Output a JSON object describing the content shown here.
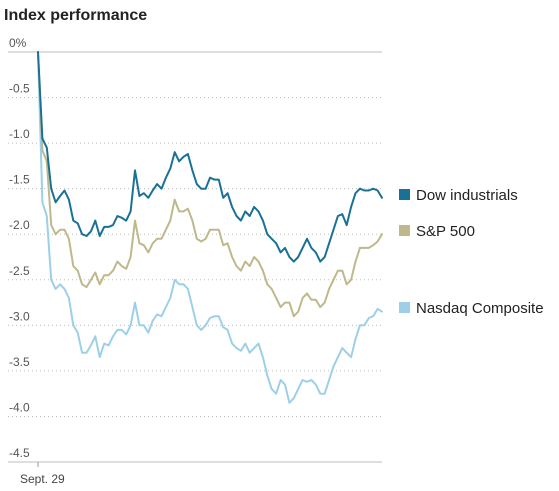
{
  "chart_data": {
    "type": "line",
    "title": "Index performance",
    "xlabel": "",
    "ylabel": "",
    "ylim": [
      -4.5,
      0
    ],
    "yticks": [
      0,
      -0.5,
      -1.0,
      -1.5,
      -2.0,
      -2.5,
      -3.0,
      -3.5,
      -4.0,
      -4.5
    ],
    "ytick_labels": [
      "0%",
      "-0.5",
      "-1.0",
      "-1.5",
      "-2.0",
      "-2.5",
      "-3.0",
      "-3.5",
      "-4.0",
      "-4.5"
    ],
    "xtick_labels": [
      "Sept. 29"
    ],
    "grid": true,
    "legend": "right",
    "series": [
      {
        "name": "Dow industrials",
        "color": "#1a7196",
        "values": [
          0,
          -0.95,
          -1.05,
          -1.5,
          -1.65,
          -1.58,
          -1.52,
          -1.62,
          -1.85,
          -1.88,
          -2.0,
          -2.02,
          -1.97,
          -1.85,
          -2.02,
          -1.92,
          -1.92,
          -1.9,
          -1.8,
          -1.82,
          -1.85,
          -1.75,
          -1.3,
          -1.58,
          -1.55,
          -1.6,
          -1.52,
          -1.45,
          -1.5,
          -1.38,
          -1.28,
          -1.1,
          -1.2,
          -1.15,
          -1.12,
          -1.3,
          -1.45,
          -1.5,
          -1.5,
          -1.38,
          -1.4,
          -1.4,
          -1.6,
          -1.55,
          -1.7,
          -1.8,
          -1.85,
          -1.75,
          -1.8,
          -1.7,
          -1.75,
          -1.85,
          -2.0,
          -2.05,
          -2.1,
          -2.2,
          -2.15,
          -2.25,
          -2.3,
          -2.25,
          -2.15,
          -2.05,
          -2.15,
          -2.2,
          -2.3,
          -2.25,
          -2.1,
          -1.95,
          -1.8,
          -1.78,
          -1.9,
          -1.7,
          -1.55,
          -1.5,
          -1.52,
          -1.52,
          -1.5,
          -1.52,
          -1.6
        ]
      },
      {
        "name": "S&P 500",
        "color": "#bfb88a",
        "values": [
          0,
          -1.08,
          -1.2,
          -1.9,
          -2.0,
          -1.95,
          -1.95,
          -2.05,
          -2.35,
          -2.4,
          -2.55,
          -2.58,
          -2.5,
          -2.42,
          -2.55,
          -2.45,
          -2.45,
          -2.4,
          -2.3,
          -2.35,
          -2.38,
          -2.25,
          -1.85,
          -2.1,
          -2.12,
          -2.2,
          -2.1,
          -2.05,
          -2.05,
          -1.95,
          -1.85,
          -1.62,
          -1.75,
          -1.75,
          -1.72,
          -1.85,
          -2.05,
          -2.08,
          -2.05,
          -1.95,
          -1.95,
          -1.95,
          -2.12,
          -2.1,
          -2.25,
          -2.35,
          -2.4,
          -2.3,
          -2.35,
          -2.25,
          -2.3,
          -2.4,
          -2.55,
          -2.6,
          -2.7,
          -2.8,
          -2.75,
          -2.75,
          -2.9,
          -2.85,
          -2.7,
          -2.65,
          -2.72,
          -2.72,
          -2.8,
          -2.75,
          -2.6,
          -2.5,
          -2.4,
          -2.4,
          -2.55,
          -2.5,
          -2.3,
          -2.15,
          -2.15,
          -2.15,
          -2.12,
          -2.08,
          -2.0
        ]
      },
      {
        "name": "Nasdaq Composite",
        "color": "#9dd0e8",
        "values": [
          0,
          -1.65,
          -1.8,
          -2.5,
          -2.6,
          -2.55,
          -2.6,
          -2.7,
          -3.0,
          -3.08,
          -3.3,
          -3.3,
          -3.22,
          -3.12,
          -3.35,
          -3.2,
          -3.22,
          -3.12,
          -3.05,
          -3.05,
          -3.1,
          -3.0,
          -2.75,
          -3.0,
          -3.0,
          -3.08,
          -2.95,
          -2.88,
          -2.9,
          -2.8,
          -2.7,
          -2.5,
          -2.55,
          -2.55,
          -2.6,
          -2.8,
          -3.0,
          -3.05,
          -3.0,
          -2.92,
          -2.9,
          -2.9,
          -3.02,
          -3.05,
          -3.2,
          -3.25,
          -3.28,
          -3.2,
          -3.3,
          -3.25,
          -3.2,
          -3.35,
          -3.55,
          -3.7,
          -3.75,
          -3.6,
          -3.65,
          -3.85,
          -3.8,
          -3.7,
          -3.6,
          -3.62,
          -3.6,
          -3.65,
          -3.75,
          -3.75,
          -3.6,
          -3.45,
          -3.35,
          -3.25,
          -3.3,
          -3.35,
          -3.15,
          -3.0,
          -3.0,
          -2.92,
          -2.9,
          -2.82,
          -2.85
        ]
      }
    ]
  }
}
